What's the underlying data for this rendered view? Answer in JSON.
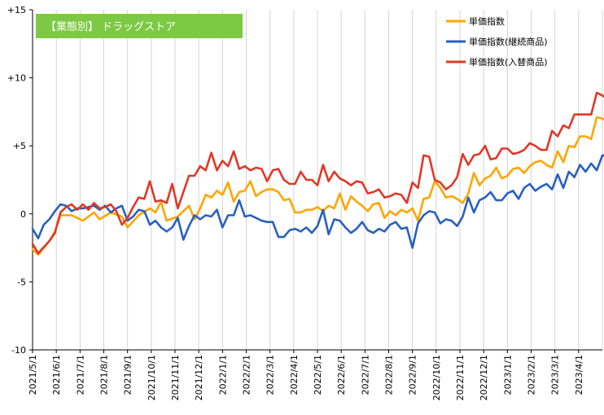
{
  "chart_data": {
    "type": "line",
    "title": "【業態別】 ドラッグストア",
    "xlabel": "",
    "ylabel": "",
    "ylim": [
      -10,
      15
    ],
    "y_ticks": [
      "+15",
      "+10",
      "+5",
      "0",
      "-5",
      "-10"
    ],
    "x_tick_labels": [
      "2021/5/1",
      "2021/6/1",
      "2021/7/1",
      "2021/8/1",
      "2021/9/1",
      "2021/10/1",
      "2021/11/1",
      "2021/12/1",
      "2022/1/1",
      "2022/2/1",
      "2022/3/1",
      "2022/4/1",
      "2022/5/1",
      "2022/6/1",
      "2022/7/1",
      "2022/8/1",
      "2022/9/1",
      "2022/10/1",
      "2022/11/1",
      "2022/12/1",
      "2023/1/1",
      "2023/2/1",
      "2023/3/1",
      "2023/4/1"
    ],
    "x_range_weeks": [
      0,
      102
    ],
    "legend_position": "top-right",
    "grid": "vertical",
    "series": [
      {
        "name": "単価指数",
        "color": "#FFA500",
        "anchors": [
          [
            0,
            -2.6
          ],
          [
            1,
            -3.0
          ],
          [
            3,
            -2.0
          ],
          [
            4,
            -1.3
          ],
          [
            5,
            -0.1
          ],
          [
            7,
            -0.1
          ],
          [
            9,
            -0.5
          ],
          [
            11,
            0.1
          ],
          [
            12,
            -0.4
          ],
          [
            14,
            0.1
          ],
          [
            16,
            -0.2
          ],
          [
            17,
            -1.0
          ],
          [
            19,
            -0.1
          ],
          [
            21,
            0.4
          ],
          [
            22,
            0.1
          ],
          [
            23,
            0.9
          ],
          [
            24,
            -0.5
          ],
          [
            26,
            -0.2
          ],
          [
            28,
            0.6
          ],
          [
            29,
            -0.4
          ],
          [
            30,
            0.4
          ],
          [
            31,
            1.4
          ],
          [
            32,
            1.2
          ],
          [
            33,
            1.7
          ],
          [
            34,
            1.4
          ],
          [
            35,
            2.3
          ],
          [
            36,
            0.9
          ],
          [
            37,
            1.6
          ],
          [
            38,
            1.7
          ],
          [
            39,
            2.4
          ],
          [
            40,
            1.3
          ],
          [
            41,
            1.6
          ],
          [
            42,
            1.8
          ],
          [
            43,
            1.8
          ],
          [
            44,
            1.6
          ],
          [
            45,
            1.0
          ],
          [
            46,
            1.1
          ],
          [
            47,
            0.1
          ],
          [
            48,
            0.1
          ],
          [
            49,
            0.3
          ],
          [
            50,
            0.3
          ],
          [
            51,
            0.5
          ],
          [
            52,
            0.2
          ],
          [
            53,
            0.6
          ],
          [
            54,
            0.4
          ],
          [
            55,
            1.5
          ],
          [
            56,
            0.3
          ],
          [
            57,
            1.3
          ],
          [
            58,
            0.9
          ],
          [
            59,
            0.6
          ],
          [
            60,
            0.2
          ],
          [
            61,
            0.7
          ],
          [
            62,
            0.8
          ],
          [
            63,
            -0.3
          ],
          [
            64,
            0.2
          ],
          [
            65,
            -0.1
          ],
          [
            66,
            0.3
          ],
          [
            67,
            0.1
          ],
          [
            68,
            0.4
          ],
          [
            69,
            -0.5
          ],
          [
            70,
            1.1
          ],
          [
            71,
            1.2
          ],
          [
            72,
            2.4
          ],
          [
            73,
            1.9
          ],
          [
            74,
            1.2
          ],
          [
            75,
            1.3
          ],
          [
            76,
            1.1
          ],
          [
            77,
            0.8
          ],
          [
            78,
            1.5
          ],
          [
            79,
            3.0
          ],
          [
            80,
            2.1
          ],
          [
            81,
            2.6
          ],
          [
            82,
            2.8
          ],
          [
            83,
            3.4
          ],
          [
            84,
            2.6
          ],
          [
            85,
            2.8
          ],
          [
            86,
            3.3
          ],
          [
            87,
            3.4
          ],
          [
            88,
            3.0
          ],
          [
            89,
            3.5
          ],
          [
            90,
            3.8
          ],
          [
            91,
            3.9
          ],
          [
            92,
            3.6
          ],
          [
            93,
            3.4
          ],
          [
            94,
            4.6
          ],
          [
            95,
            3.8
          ],
          [
            96,
            5.0
          ],
          [
            97,
            4.9
          ],
          [
            98,
            5.7
          ],
          [
            99,
            5.7
          ],
          [
            100,
            5.5
          ],
          [
            101,
            7.1
          ],
          [
            102,
            7.0
          ],
          [
            103,
            6.8
          ]
        ]
      },
      {
        "name": "単価指数(継続商品)",
        "color": "#2860C0",
        "anchors": [
          [
            0,
            -1.1
          ],
          [
            1,
            -1.8
          ],
          [
            2,
            -0.8
          ],
          [
            3,
            -0.4
          ],
          [
            4,
            0.2
          ],
          [
            5,
            0.7
          ],
          [
            6,
            0.6
          ],
          [
            7,
            0.2
          ],
          [
            8,
            0.4
          ],
          [
            9,
            0.4
          ],
          [
            10,
            0.5
          ],
          [
            11,
            0.6
          ],
          [
            12,
            0.3
          ],
          [
            13,
            0.6
          ],
          [
            14,
            0.1
          ],
          [
            15,
            0.4
          ],
          [
            16,
            0.6
          ],
          [
            17,
            -0.5
          ],
          [
            18,
            -0.2
          ],
          [
            19,
            0.3
          ],
          [
            20,
            0.2
          ],
          [
            21,
            -0.8
          ],
          [
            22,
            -0.5
          ],
          [
            23,
            -1.0
          ],
          [
            24,
            -1.3
          ],
          [
            25,
            -1.0
          ],
          [
            26,
            -0.3
          ],
          [
            27,
            -1.9
          ],
          [
            28,
            -0.9
          ],
          [
            29,
            -0.1
          ],
          [
            30,
            -0.4
          ],
          [
            31,
            -0.1
          ],
          [
            32,
            -0.2
          ],
          [
            33,
            0.3
          ],
          [
            34,
            -1.0
          ],
          [
            35,
            -0.1
          ],
          [
            36,
            -0.1
          ],
          [
            37,
            1.0
          ],
          [
            38,
            -0.2
          ],
          [
            39,
            -0.1
          ],
          [
            40,
            -0.3
          ],
          [
            41,
            -0.5
          ],
          [
            42,
            -0.6
          ],
          [
            43,
            -0.6
          ],
          [
            44,
            -1.7
          ],
          [
            45,
            -1.7
          ],
          [
            46,
            -1.2
          ],
          [
            47,
            -1.1
          ],
          [
            48,
            -1.3
          ],
          [
            49,
            -1.0
          ],
          [
            50,
            -1.4
          ],
          [
            51,
            -0.9
          ],
          [
            52,
            0.3
          ],
          [
            53,
            -1.5
          ],
          [
            54,
            -0.4
          ],
          [
            55,
            -0.5
          ],
          [
            56,
            -1.0
          ],
          [
            57,
            -1.4
          ],
          [
            58,
            -1.1
          ],
          [
            59,
            -0.6
          ],
          [
            60,
            -1.2
          ],
          [
            61,
            -1.4
          ],
          [
            62,
            -1.1
          ],
          [
            63,
            -1.3
          ],
          [
            64,
            -0.8
          ],
          [
            65,
            -0.6
          ],
          [
            66,
            -1.1
          ],
          [
            67,
            -1.0
          ],
          [
            68,
            -2.5
          ],
          [
            69,
            -0.7
          ],
          [
            70,
            -0.1
          ],
          [
            71,
            0.2
          ],
          [
            72,
            0.1
          ],
          [
            73,
            -0.7
          ],
          [
            74,
            -0.4
          ],
          [
            75,
            -0.5
          ],
          [
            76,
            -0.9
          ],
          [
            77,
            -0.2
          ],
          [
            78,
            1.2
          ],
          [
            79,
            0.1
          ],
          [
            80,
            1.0
          ],
          [
            81,
            1.2
          ],
          [
            82,
            1.6
          ],
          [
            83,
            1.0
          ],
          [
            84,
            1.0
          ],
          [
            85,
            1.5
          ],
          [
            86,
            1.7
          ],
          [
            87,
            1.1
          ],
          [
            88,
            1.9
          ],
          [
            89,
            2.2
          ],
          [
            90,
            1.7
          ],
          [
            91,
            2.0
          ],
          [
            92,
            2.2
          ],
          [
            93,
            1.8
          ],
          [
            94,
            2.9
          ],
          [
            95,
            1.9
          ],
          [
            96,
            3.1
          ],
          [
            97,
            2.7
          ],
          [
            98,
            3.6
          ],
          [
            99,
            3.1
          ],
          [
            100,
            3.7
          ],
          [
            101,
            3.2
          ],
          [
            102,
            4.3
          ],
          [
            103,
            4.2
          ],
          [
            104,
            4.2
          ]
        ]
      },
      {
        "name": "単価指数(入替商品)",
        "color": "#E03828",
        "anchors": [
          [
            0,
            -2.2
          ],
          [
            1,
            -2.9
          ],
          [
            3,
            -2.0
          ],
          [
            4,
            -1.4
          ],
          [
            5,
            0.1
          ],
          [
            6,
            0.5
          ],
          [
            7,
            0.7
          ],
          [
            8,
            0.3
          ],
          [
            9,
            0.7
          ],
          [
            10,
            0.3
          ],
          [
            11,
            0.8
          ],
          [
            12,
            0.4
          ],
          [
            13,
            0.5
          ],
          [
            14,
            0.7
          ],
          [
            15,
            0.2
          ],
          [
            16,
            -0.8
          ],
          [
            17,
            -0.3
          ],
          [
            18,
            0.5
          ],
          [
            19,
            1.2
          ],
          [
            20,
            1.1
          ],
          [
            21,
            2.4
          ],
          [
            22,
            0.9
          ],
          [
            23,
            1.0
          ],
          [
            24,
            0.8
          ],
          [
            25,
            2.2
          ],
          [
            26,
            0.4
          ],
          [
            27,
            1.6
          ],
          [
            28,
            2.8
          ],
          [
            29,
            2.8
          ],
          [
            30,
            3.5
          ],
          [
            31,
            3.2
          ],
          [
            32,
            4.5
          ],
          [
            33,
            3.2
          ],
          [
            34,
            3.9
          ],
          [
            35,
            3.5
          ],
          [
            36,
            4.6
          ],
          [
            37,
            3.3
          ],
          [
            38,
            3.5
          ],
          [
            39,
            3.2
          ],
          [
            40,
            3.4
          ],
          [
            41,
            3.3
          ],
          [
            42,
            2.4
          ],
          [
            43,
            3.2
          ],
          [
            44,
            3.3
          ],
          [
            45,
            2.5
          ],
          [
            46,
            2.2
          ],
          [
            47,
            2.2
          ],
          [
            48,
            3.1
          ],
          [
            49,
            2.5
          ],
          [
            50,
            2.5
          ],
          [
            51,
            2.1
          ],
          [
            52,
            3.6
          ],
          [
            53,
            2.4
          ],
          [
            54,
            3.1
          ],
          [
            55,
            2.6
          ],
          [
            56,
            2.4
          ],
          [
            57,
            2.1
          ],
          [
            58,
            2.4
          ],
          [
            59,
            2.3
          ],
          [
            60,
            1.5
          ],
          [
            61,
            1.6
          ],
          [
            62,
            1.8
          ],
          [
            63,
            1.2
          ],
          [
            64,
            1.3
          ],
          [
            65,
            1.5
          ],
          [
            66,
            1.4
          ],
          [
            67,
            0.8
          ],
          [
            68,
            2.3
          ],
          [
            69,
            1.9
          ],
          [
            70,
            4.3
          ],
          [
            71,
            4.2
          ],
          [
            72,
            2.5
          ],
          [
            73,
            2.3
          ],
          [
            74,
            1.8
          ],
          [
            75,
            2.1
          ],
          [
            76,
            2.7
          ],
          [
            77,
            4.4
          ],
          [
            78,
            3.6
          ],
          [
            79,
            4.3
          ],
          [
            80,
            4.4
          ],
          [
            81,
            5.0
          ],
          [
            82,
            4.0
          ],
          [
            83,
            4.1
          ],
          [
            84,
            4.8
          ],
          [
            85,
            4.8
          ],
          [
            86,
            4.4
          ],
          [
            87,
            4.5
          ],
          [
            88,
            4.7
          ],
          [
            89,
            5.2
          ],
          [
            90,
            5.0
          ],
          [
            91,
            4.7
          ],
          [
            92,
            4.7
          ],
          [
            93,
            6.1
          ],
          [
            94,
            5.7
          ],
          [
            95,
            6.5
          ],
          [
            96,
            6.3
          ],
          [
            97,
            7.3
          ],
          [
            98,
            7.3
          ],
          [
            99,
            7.3
          ],
          [
            100,
            7.3
          ],
          [
            101,
            8.9
          ],
          [
            102,
            8.7
          ],
          [
            103,
            8.4
          ],
          [
            104,
            8.1
          ]
        ]
      }
    ]
  }
}
